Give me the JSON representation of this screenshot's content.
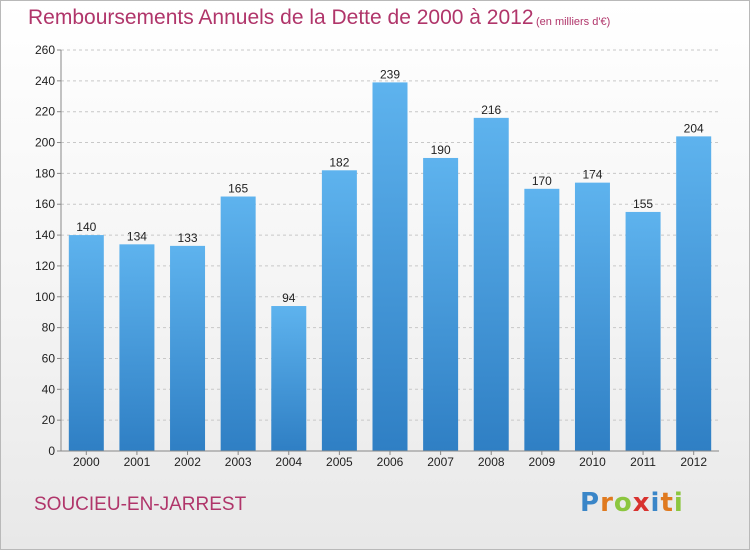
{
  "title": "Remboursements Annuels de la Dette de 2000 à 2012",
  "unit_note": "(en milliers d'€)",
  "place": "SOUCIEU-EN-JARREST",
  "logo": {
    "text": "Proxiti",
    "letters": [
      "P",
      "r",
      "o",
      "x",
      "i",
      "t",
      "i"
    ]
  },
  "colors": {
    "bar": "#3b8fd6",
    "bar_light": "#5cb0ec",
    "title": "#b0356a"
  },
  "chart_data": {
    "type": "bar",
    "categories": [
      "2000",
      "2001",
      "2002",
      "2003",
      "2004",
      "2005",
      "2006",
      "2007",
      "2008",
      "2009",
      "2010",
      "2011",
      "2012"
    ],
    "values": [
      140,
      134,
      133,
      165,
      94,
      182,
      239,
      190,
      216,
      170,
      174,
      155,
      204
    ],
    "ylim": [
      0,
      260
    ],
    "yticks": [
      0,
      20,
      40,
      60,
      80,
      100,
      120,
      140,
      160,
      180,
      200,
      220,
      240,
      260
    ],
    "grid": true,
    "xlabel": "",
    "ylabel": ""
  }
}
